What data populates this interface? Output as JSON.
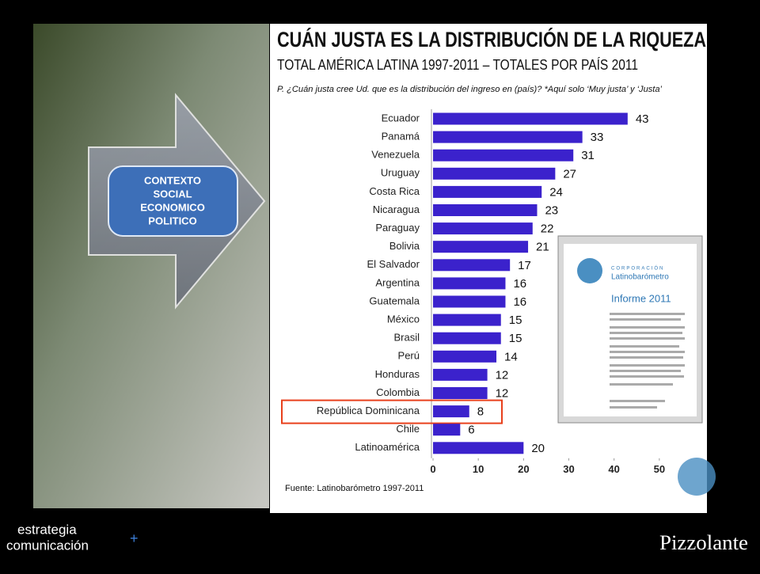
{
  "chart_data": {
    "type": "barh",
    "title": "CUÁN JUSTA ES LA DISTRIBUCIÓN DE LA RIQUEZA",
    "subtitle": "TOTAL AMÉRICA LATINA 1997-2011 – TOTALES POR PAÍS 2011",
    "question": "P. ¿Cuán justa cree Ud. que es la distribución del ingreso en (país)? *Aquí solo ‘Muy justa’ y ‘Justa’",
    "source": "Fuente: Latinobarómetro 1997-2011",
    "categories": [
      "Ecuador",
      "Panamá",
      "Venezuela",
      "Uruguay",
      "Costa Rica",
      "Nicaragua",
      "Paraguay",
      "Bolivia",
      "El Salvador",
      "Argentina",
      "Guatemala",
      "México",
      "Brasil",
      "Perú",
      "Honduras",
      "Colombia",
      "República Dominicana",
      "Chile",
      "Latinoamérica"
    ],
    "values": [
      43,
      33,
      31,
      27,
      24,
      23,
      22,
      21,
      17,
      16,
      16,
      15,
      15,
      14,
      12,
      12,
      8,
      6,
      20
    ],
    "color": "#3b22cc",
    "xlim": [
      0,
      60
    ],
    "xticks": [
      0,
      10,
      20,
      30,
      40,
      50
    ],
    "highlight": "República Dominicana"
  },
  "context_box": [
    "CONTEXTO",
    "SOCIAL",
    "ECONOMICO",
    "POLITICO"
  ],
  "report_cover": {
    "org_small": "CORPORACIÓN",
    "org": "Latinobarómetro",
    "title": "Informe 2011"
  },
  "footer": {
    "left_1": "estrategia",
    "left_2": "comunicación",
    "right": "Pizzolante"
  }
}
